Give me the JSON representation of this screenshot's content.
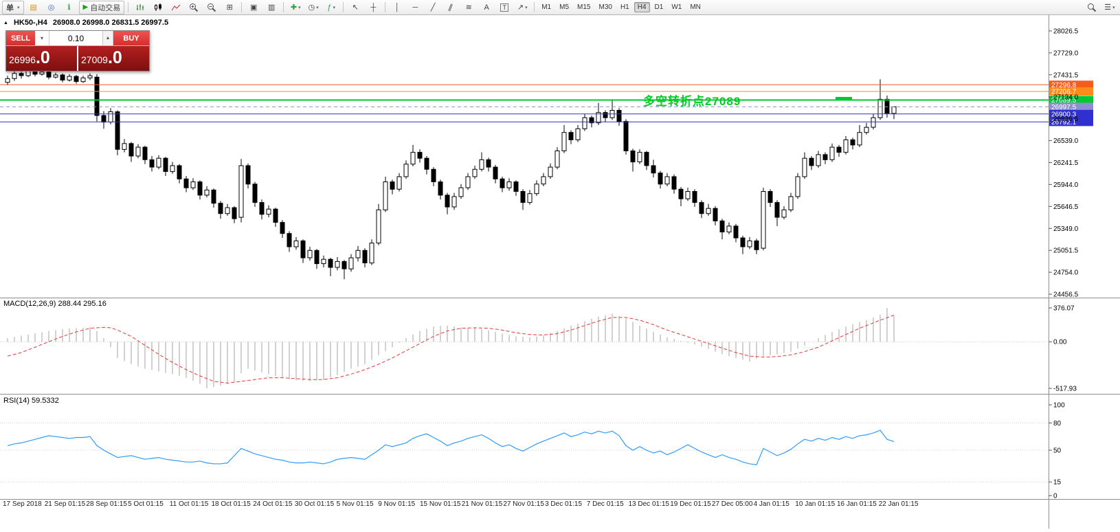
{
  "toolbar": {
    "new_order": "单",
    "autotrading": "自动交易",
    "timeframes": [
      "M1",
      "M5",
      "M15",
      "M30",
      "H1",
      "H4",
      "D1",
      "W1",
      "MN"
    ],
    "active_timeframe": "H4"
  },
  "icons": {
    "dropdown": "▾",
    "charts": "▤",
    "profile": "◎",
    "info": "ℹ",
    "play": "▶",
    "tile": "⊞",
    "cascade": "▣",
    "tile_v": "▥",
    "plus": "✚",
    "clock": "◷",
    "function": "ƒ",
    "cursor": "↖",
    "crosshair": "┼",
    "vline": "│",
    "hline": "─",
    "trend": "╱",
    "channel": "∥",
    "fibo": "≋",
    "text": "A",
    "label": "T",
    "arrow": "↗",
    "spinner_up": "▲",
    "triangle": "▲",
    "menu": "☰"
  },
  "chart": {
    "symbol_period": "HK50-,H4",
    "ohlc": "26908.0 26998.0 26831.5 26997.5",
    "annotation": "多空转折点27089",
    "annotation_color": "#00cc22",
    "price_scale": [
      "28026.5",
      "27729.0",
      "27431.5",
      "27134.0",
      "26836.5",
      "26539.0",
      "26241.5",
      "25944.0",
      "25646.5",
      "25349.0",
      "25051.5",
      "24754.0",
      "24456.5"
    ],
    "levels": [
      {
        "label": "27296.8",
        "price": 27296.8,
        "color": "#f55d1e",
        "style": "solid",
        "width": 1
      },
      {
        "label": "27206.7",
        "price": 27206.7,
        "color": "#ff8c1a",
        "style": "solid",
        "width": 1
      },
      {
        "label": "27089.5",
        "price": 27089.5,
        "color": "#00c832",
        "style": "solid",
        "width": 2
      },
      {
        "label": "26997.5",
        "price": 26997.5,
        "color": "#8f8fd0",
        "style": "dash",
        "width": 1
      },
      {
        "label": "26900.3",
        "price": 26900.3,
        "color": "#3030d0",
        "style": "solid",
        "width": 1
      },
      {
        "label": "26792.1",
        "price": 26792.1,
        "color": "#3030d0",
        "style": "solid",
        "width": 1
      }
    ],
    "dates": [
      "17 Sep 2018",
      "21 Sep 01:15",
      "28 Sep 01:15",
      "5 Oct 01:15",
      "11 Oct 01:15",
      "18 Oct 01:15",
      "24 Oct 01:15",
      "30 Oct 01:15",
      "5 Nov 01:15",
      "9 Nov 01:15",
      "15 Nov 01:15",
      "21 Nov 01:15",
      "27 Nov 01:15",
      "3 Dec 01:15",
      "7 Dec 01:15",
      "13 Dec 01:15",
      "19 Dec 01:15",
      "27 Dec 05:00",
      "4 Jan 01:15",
      "10 Jan 01:15",
      "16 Jan 01:15",
      "22 Jan 01:15"
    ]
  },
  "trade_panel": {
    "sell": "SELL",
    "buy": "BUY",
    "lot": "0.10",
    "sell_price_int": "26996",
    "sell_price_frac": ".0",
    "buy_price_int": "27009",
    "buy_price_frac": ".0"
  },
  "macd": {
    "title": "MACD(12,26,9) 288.44 295.16",
    "scale": [
      "376.07",
      "0.00",
      "-517.93"
    ]
  },
  "rsi": {
    "title": "RSI(14) 59.5332",
    "scale": [
      "100",
      "80",
      "50",
      "15",
      "0"
    ]
  },
  "chart_data": {
    "type": "candlestick",
    "symbol": "HK50-",
    "timeframe": "H4",
    "price_range": [
      24456.5,
      28026.5
    ],
    "candles": [
      [
        27330,
        27420,
        27290,
        27380
      ],
      [
        27380,
        27500,
        27350,
        27450
      ],
      [
        27450,
        27480,
        27380,
        27420
      ],
      [
        27420,
        27520,
        27400,
        27490
      ],
      [
        27490,
        27510,
        27410,
        27440
      ],
      [
        27440,
        27500,
        27420,
        27470
      ],
      [
        27470,
        27490,
        27370,
        27400
      ],
      [
        27400,
        27460,
        27380,
        27430
      ],
      [
        27430,
        27450,
        27330,
        27360
      ],
      [
        27360,
        27440,
        27340,
        27410
      ],
      [
        27410,
        27430,
        27310,
        27340
      ],
      [
        27340,
        27420,
        27320,
        27390
      ],
      [
        27390,
        27450,
        27360,
        27420
      ],
      [
        27400,
        27440,
        26800,
        26880
      ],
      [
        26880,
        26940,
        26700,
        26790
      ],
      [
        26790,
        26980,
        26760,
        26930
      ],
      [
        26930,
        26950,
        26340,
        26420
      ],
      [
        26420,
        26560,
        26380,
        26500
      ],
      [
        26500,
        26520,
        26250,
        26330
      ],
      [
        26330,
        26490,
        26300,
        26450
      ],
      [
        26450,
        26470,
        26220,
        26280
      ],
      [
        26280,
        26330,
        26120,
        26180
      ],
      [
        26180,
        26340,
        26150,
        26300
      ],
      [
        26300,
        26320,
        26060,
        26120
      ],
      [
        26120,
        26250,
        26090,
        26200
      ],
      [
        26200,
        26220,
        25960,
        26020
      ],
      [
        26020,
        26060,
        25840,
        25900
      ],
      [
        25900,
        26030,
        25870,
        25980
      ],
      [
        25980,
        26000,
        25740,
        25800
      ],
      [
        25800,
        25920,
        25770,
        25870
      ],
      [
        25870,
        25890,
        25630,
        25690
      ],
      [
        25690,
        25720,
        25480,
        25550
      ],
      [
        25550,
        25680,
        25520,
        25630
      ],
      [
        25630,
        25650,
        25420,
        25480
      ],
      [
        25500,
        26290,
        25430,
        26200
      ],
      [
        26200,
        26230,
        25890,
        25950
      ],
      [
        25950,
        25980,
        25640,
        25700
      ],
      [
        25700,
        25740,
        25470,
        25540
      ],
      [
        25540,
        25660,
        25500,
        25610
      ],
      [
        25610,
        25630,
        25370,
        25430
      ],
      [
        25430,
        25460,
        25220,
        25280
      ],
      [
        25280,
        25310,
        25030,
        25100
      ],
      [
        25100,
        25230,
        25060,
        25180
      ],
      [
        25180,
        25200,
        24880,
        24950
      ],
      [
        24950,
        25100,
        24910,
        25050
      ],
      [
        25050,
        25070,
        24800,
        24870
      ],
      [
        24870,
        24980,
        24820,
        24930
      ],
      [
        24930,
        24950,
        24700,
        24820
      ],
      [
        24820,
        24960,
        24780,
        24900
      ],
      [
        24900,
        24920,
        24660,
        24800
      ],
      [
        24800,
        25000,
        24760,
        24950
      ],
      [
        24950,
        25110,
        24900,
        25050
      ],
      [
        25050,
        25080,
        24820,
        24880
      ],
      [
        24880,
        25200,
        24850,
        25150
      ],
      [
        25150,
        25680,
        25120,
        25600
      ],
      [
        25600,
        26050,
        25570,
        25980
      ],
      [
        25980,
        26010,
        25810,
        25880
      ],
      [
        25880,
        26100,
        25850,
        26050
      ],
      [
        26050,
        26270,
        26020,
        26220
      ],
      [
        26220,
        26480,
        26190,
        26380
      ],
      [
        26380,
        26420,
        26240,
        26300
      ],
      [
        26300,
        26330,
        26080,
        26150
      ],
      [
        26150,
        26180,
        25920,
        25980
      ],
      [
        25980,
        26010,
        25740,
        25800
      ],
      [
        25800,
        25830,
        25540,
        25640
      ],
      [
        25640,
        25830,
        25600,
        25780
      ],
      [
        25780,
        25950,
        25750,
        25900
      ],
      [
        25900,
        26100,
        25870,
        26050
      ],
      [
        26050,
        26200,
        26020,
        26150
      ],
      [
        26150,
        26380,
        26120,
        26280
      ],
      [
        26280,
        26310,
        26120,
        26180
      ],
      [
        26180,
        26210,
        25960,
        26020
      ],
      [
        26020,
        26050,
        25840,
        25900
      ],
      [
        25900,
        26030,
        25860,
        25980
      ],
      [
        25980,
        26000,
        25790,
        25850
      ],
      [
        25850,
        25880,
        25600,
        25700
      ],
      [
        25700,
        25870,
        25670,
        25820
      ],
      [
        25820,
        26000,
        25790,
        25950
      ],
      [
        25950,
        26100,
        25920,
        26050
      ],
      [
        26050,
        26230,
        26020,
        26180
      ],
      [
        26180,
        26450,
        26150,
        26400
      ],
      [
        26400,
        26750,
        26370,
        26650
      ],
      [
        26650,
        26680,
        26490,
        26550
      ],
      [
        26550,
        26750,
        26520,
        26700
      ],
      [
        26700,
        26900,
        26670,
        26850
      ],
      [
        26850,
        26880,
        26720,
        26780
      ],
      [
        26780,
        27050,
        26750,
        26920
      ],
      [
        26920,
        26950,
        26790,
        26850
      ],
      [
        26850,
        27100,
        26820,
        26950
      ],
      [
        26950,
        26980,
        26740,
        26800
      ],
      [
        26800,
        26830,
        26350,
        26400
      ],
      [
        26400,
        26430,
        26120,
        26250
      ],
      [
        26250,
        26420,
        26220,
        26380
      ],
      [
        26380,
        26400,
        26140,
        26200
      ],
      [
        26200,
        26280,
        26040,
        26100
      ],
      [
        26100,
        26130,
        25890,
        25950
      ],
      [
        25950,
        26100,
        25920,
        26050
      ],
      [
        26050,
        26080,
        25820,
        25880
      ],
      [
        25880,
        25910,
        25650,
        25750
      ],
      [
        25750,
        25900,
        25720,
        25850
      ],
      [
        25850,
        25880,
        25640,
        25700
      ],
      [
        25700,
        25730,
        25490,
        25550
      ],
      [
        25550,
        25680,
        25520,
        25620
      ],
      [
        25620,
        25650,
        25390,
        25450
      ],
      [
        25450,
        25480,
        25200,
        25300
      ],
      [
        25300,
        25430,
        25270,
        25380
      ],
      [
        25380,
        25410,
        25160,
        25220
      ],
      [
        25220,
        25250,
        25000,
        25100
      ],
      [
        25100,
        25230,
        25070,
        25180
      ],
      [
        25180,
        25210,
        25000,
        25060
      ],
      [
        25080,
        25900,
        25050,
        25850
      ],
      [
        25850,
        25880,
        25640,
        25700
      ],
      [
        25700,
        25730,
        25380,
        25500
      ],
      [
        25500,
        25650,
        25470,
        25600
      ],
      [
        25600,
        25830,
        25570,
        25780
      ],
      [
        25780,
        26100,
        25750,
        26050
      ],
      [
        26050,
        26380,
        26020,
        26300
      ],
      [
        26300,
        26330,
        26140,
        26200
      ],
      [
        26200,
        26400,
        26170,
        26350
      ],
      [
        26350,
        26380,
        26220,
        26280
      ],
      [
        26280,
        26500,
        26250,
        26450
      ],
      [
        26450,
        26480,
        26320,
        26380
      ],
      [
        26380,
        26600,
        26350,
        26550
      ],
      [
        26550,
        26580,
        26420,
        26480
      ],
      [
        26480,
        26750,
        26450,
        26650
      ],
      [
        26650,
        26780,
        26620,
        26720
      ],
      [
        26720,
        26900,
        26690,
        26850
      ],
      [
        26850,
        27370,
        26820,
        27100
      ],
      [
        27100,
        27150,
        26850,
        26910
      ],
      [
        26908,
        26998,
        26831.5,
        26997.5
      ]
    ],
    "indicators": {
      "macd": {
        "params": [
          12,
          26,
          9
        ],
        "current_main": 288.44,
        "current_signal": 295.16,
        "range": [
          -517.93,
          376.07
        ],
        "histogram": [
          40,
          53,
          67,
          80,
          93,
          107,
          120,
          130,
          140,
          150,
          153,
          157,
          160,
          120,
          40,
          -60,
          -180,
          -215,
          -250,
          -275,
          -300,
          -315,
          -330,
          -345,
          -360,
          -380,
          -400,
          -435,
          -470,
          -517.93,
          -504,
          -490,
          -470,
          -450,
          -350,
          -300,
          -320,
          -340,
          -360,
          -380,
          -400,
          -415,
          -430,
          -435,
          -440,
          -430,
          -420,
          -395,
          -370,
          -335,
          -300,
          -275,
          -250,
          -200,
          -150,
          -105,
          -60,
          -10,
          40,
          80,
          120,
          145,
          170,
          175,
          180,
          170,
          160,
          155,
          150,
          140,
          130,
          110,
          90,
          75,
          60,
          55,
          50,
          60,
          70,
          95,
          120,
          150,
          180,
          205,
          230,
          255,
          280,
          295,
          310,
          285,
          260,
          220,
          180,
          145,
          110,
          80,
          50,
          30,
          10,
          -10,
          -30,
          -55,
          -80,
          -110,
          -140,
          -160,
          -180,
          -200,
          -220,
          -190,
          -160,
          -150,
          -140,
          -125,
          -110,
          -75,
          -40,
          0,
          40,
          75,
          110,
          140,
          170,
          195,
          220,
          245,
          270,
          300,
          376.07,
          288.44
        ],
        "signal": [
          -160,
          -140,
          -120,
          -90,
          -60,
          -30,
          0,
          30,
          60,
          85,
          110,
          130,
          150,
          155,
          160,
          155,
          130,
          95,
          60,
          10,
          -40,
          -90,
          -140,
          -185,
          -230,
          -270,
          -310,
          -345,
          -380,
          -410,
          -440,
          -450,
          -460,
          -450,
          -440,
          -430,
          -420,
          -410,
          -400,
          -400,
          -400,
          -405,
          -410,
          -415,
          -420,
          -420,
          -420,
          -410,
          -400,
          -380,
          -360,
          -335,
          -310,
          -280,
          -250,
          -215,
          -180,
          -140,
          -100,
          -60,
          -20,
          20,
          60,
          90,
          120,
          135,
          150,
          153,
          155,
          153,
          150,
          140,
          130,
          115,
          100,
          90,
          80,
          77,
          75,
          83,
          90,
          110,
          130,
          155,
          180,
          205,
          230,
          250,
          270,
          270,
          270,
          255,
          240,
          215,
          190,
          160,
          130,
          105,
          80,
          55,
          30,
          5,
          -20,
          -45,
          -70,
          -95,
          -120,
          -140,
          -160,
          -165,
          -170,
          -168,
          -165,
          -155,
          -145,
          -128,
          -110,
          -85,
          -60,
          -25,
          10,
          45,
          80,
          115,
          150,
          180,
          210,
          240,
          268,
          295.16
        ]
      },
      "rsi": {
        "period": 14,
        "current": 59.5332,
        "levels": [
          80,
          50,
          15
        ],
        "values": [
          55,
          57,
          58,
          60,
          62,
          64,
          66,
          65,
          64,
          63,
          64,
          64,
          65,
          55,
          50,
          46,
          42,
          43,
          44,
          42,
          40,
          41,
          42,
          40,
          39,
          38,
          37,
          37,
          38,
          36,
          35,
          35,
          36,
          44,
          52,
          49,
          46,
          44,
          42,
          40,
          39,
          37,
          36,
          36,
          37,
          36,
          35,
          37,
          40,
          41,
          42,
          41,
          40,
          45,
          50,
          56,
          54,
          56,
          58,
          63,
          66,
          68,
          64,
          60,
          55,
          58,
          60,
          63,
          65,
          67,
          63,
          58,
          54,
          56,
          52,
          49,
          53,
          57,
          60,
          63,
          66,
          69,
          65,
          67,
          70,
          68,
          71,
          69,
          71,
          66,
          55,
          50,
          54,
          50,
          47,
          49,
          45,
          48,
          52,
          56,
          52,
          48,
          45,
          42,
          45,
          42,
          40,
          37,
          35,
          34,
          52,
          48,
          44,
          47,
          51,
          57,
          62,
          60,
          63,
          61,
          64,
          62,
          65,
          63,
          66,
          67,
          69,
          72,
          62,
          59.53
        ]
      }
    }
  }
}
